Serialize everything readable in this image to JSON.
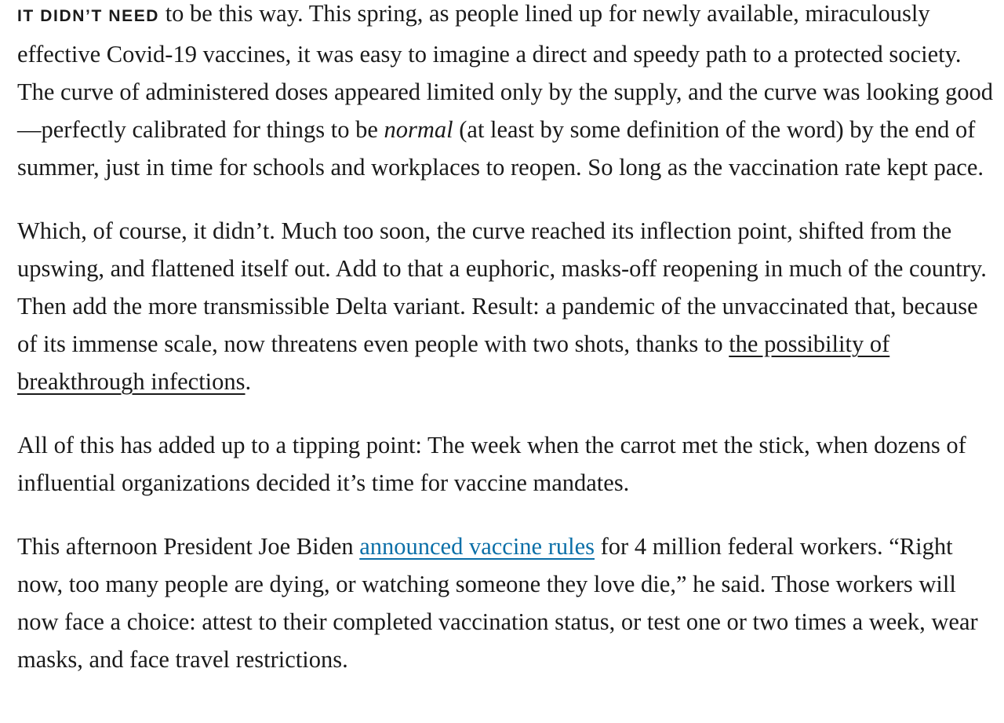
{
  "article": {
    "p1": {
      "lead_in": "IT DIDN’T NEED",
      "text_a": " to be this way. This spring, as people lined up for newly available, miraculously effective Covid-19 vaccines, it was easy to imagine a direct and speedy path to a protected society. The curve of administered doses appeared limited only by the supply, and the curve was looking good—perfectly calibrated for things to be ",
      "emphasis": "normal",
      "text_b": " (at least by some definition of the word) by the end of summer, just in time for schools and workplaces to reopen. So long as the vaccination rate kept pace."
    },
    "p2": {
      "text_a": "Which, of course, it didn’t. Much too soon, the curve reached its inflection point, shifted from the upswing, and flattened itself out. Add to that a euphoric, masks-off reopening in much of the country. Then add the more transmissible Delta variant. Result: a pandemic of the unvaccinated that, because of its immense scale, now threatens even people with two shots, thanks to ",
      "link": "the possibility of breakthrough infections",
      "text_b": "."
    },
    "p3": {
      "text": "All of this has added up to a tipping point: The week when the carrot met the stick, when dozens of influential organizations decided it’s time for vaccine mandates."
    },
    "p4": {
      "text_a": "This afternoon President Joe Biden ",
      "link": "announced vaccine rules",
      "text_b": " for 4 million federal workers. “Right now, too many people are dying, or watching someone they love die,” he said. Those workers will now face a choice: attest to their completed vaccination status, or test one or two times a week, wear masks, and face travel restrictions."
    }
  },
  "colors": {
    "text": "#1a1a1a",
    "link_blue": "#0b6fa8",
    "background": "#ffffff"
  }
}
